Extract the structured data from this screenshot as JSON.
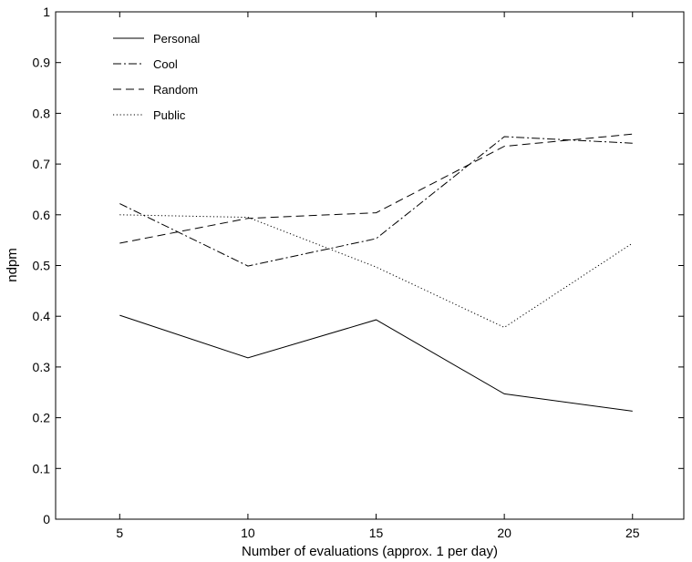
{
  "chart_data": {
    "type": "line",
    "title": "",
    "xlabel": "Number of evaluations (approx. 1 per day)",
    "ylabel": "ndpm",
    "x": [
      5,
      10,
      15,
      20,
      25
    ],
    "xlim": [
      2.5,
      27
    ],
    "ylim": [
      0,
      1
    ],
    "xticks": [
      "5",
      "10",
      "15",
      "20",
      "25"
    ],
    "yticks": [
      "0",
      "0.1",
      "0.2",
      "0.3",
      "0.4",
      "0.5",
      "0.6",
      "0.7",
      "0.8",
      "0.9",
      "1"
    ],
    "grid": false,
    "legend_position": "top-left",
    "series": [
      {
        "name": "Personal",
        "style": "solid",
        "color": "#000000",
        "values": [
          0.402,
          0.318,
          0.393,
          0.247,
          0.213
        ]
      },
      {
        "name": "Cool",
        "style": "dashdot",
        "color": "#000000",
        "values": [
          0.622,
          0.499,
          0.553,
          0.754,
          0.741
        ]
      },
      {
        "name": "Random",
        "style": "dashed",
        "color": "#000000",
        "values": [
          0.544,
          0.593,
          0.604,
          0.735,
          0.759
        ]
      },
      {
        "name": "Public",
        "style": "dotted",
        "color": "#000000",
        "values": [
          0.6,
          0.595,
          0.497,
          0.378,
          0.544
        ]
      }
    ]
  }
}
